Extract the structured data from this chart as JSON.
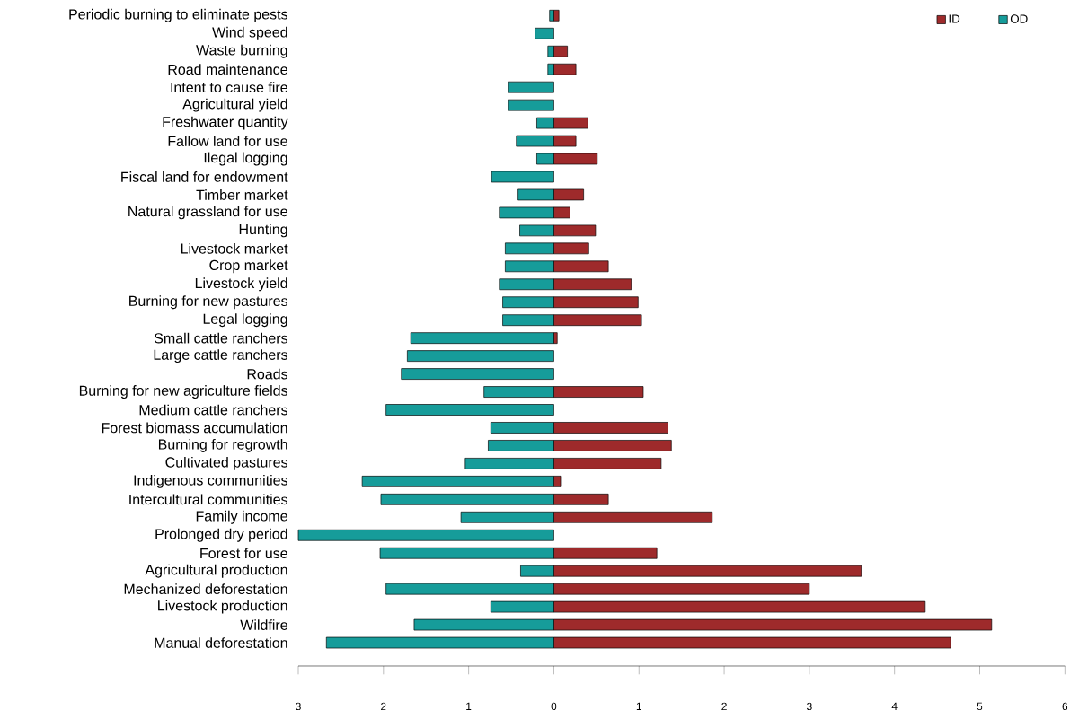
{
  "chart_data": {
    "type": "bar",
    "orientation": "horizontal",
    "stacked": true,
    "legend": "top right",
    "categories": [
      "Periodic burning to eliminate pests",
      "Wind speed",
      "Waste burning",
      "Road maintenance",
      "Intent to cause fire",
      "Agricultural yield",
      "Freshwater quantity",
      "Fallow land for use",
      "Ilegal logging",
      "Fiscal land for endowment",
      "Timber market",
      "Natural grassland for use",
      "Hunting",
      "Livestock market",
      "Crop market",
      "Livestock yield",
      "Burning for new pastures",
      "Legal logging",
      "Small cattle ranchers",
      "Large cattle ranchers",
      "Roads",
      "Burning for new agriculture fields",
      "Medium cattle ranchers",
      "Forest biomass accumulation",
      "Burning for regrowth",
      "Cultivated pastures",
      "Indigenous communities",
      "Intercultural communities",
      "Family income",
      "Prolonged dry period",
      "Forest for use",
      "Agricultural production",
      "Mechanized deforestation",
      "Livestock production",
      "Wildfire",
      "Manual deforestation"
    ],
    "series": [
      {
        "name": "OD",
        "color": "#169c9a",
        "values": [
          -0.05,
          -0.22,
          -0.07,
          -0.07,
          -0.53,
          -0.53,
          -0.2,
          -0.44,
          -0.2,
          -0.73,
          -0.42,
          -0.64,
          -0.4,
          -0.57,
          -0.57,
          -0.64,
          -0.6,
          -0.6,
          -1.68,
          -1.72,
          -1.79,
          -0.82,
          -1.97,
          -0.74,
          -0.77,
          -1.04,
          -2.25,
          -2.03,
          -1.09,
          -3.0,
          -2.04,
          -0.39,
          -1.97,
          -0.74,
          -1.64,
          -2.67
        ]
      },
      {
        "name": "ID",
        "color": "#9e2a2b",
        "values": [
          0.06,
          null,
          0.16,
          0.26,
          null,
          null,
          0.4,
          0.26,
          0.51,
          null,
          0.35,
          0.19,
          0.49,
          0.41,
          0.64,
          0.91,
          0.99,
          1.03,
          0.04,
          null,
          null,
          1.05,
          null,
          1.34,
          1.38,
          1.26,
          0.08,
          0.64,
          1.86,
          null,
          1.21,
          3.61,
          3.0,
          4.36,
          5.14,
          4.66
        ]
      }
    ],
    "xlim": [
      -3,
      6
    ],
    "xticks": [
      {
        "value": -3,
        "label": "3"
      },
      {
        "value": -2,
        "label": "2"
      },
      {
        "value": -1,
        "label": "1"
      },
      {
        "value": 0,
        "label": "0"
      },
      {
        "value": 1,
        "label": "1"
      },
      {
        "value": 2,
        "label": "2"
      },
      {
        "value": 3,
        "label": "3"
      },
      {
        "value": 4,
        "label": "4"
      },
      {
        "value": 5,
        "label": "5"
      },
      {
        "value": 6,
        "label": "6"
      }
    ]
  }
}
